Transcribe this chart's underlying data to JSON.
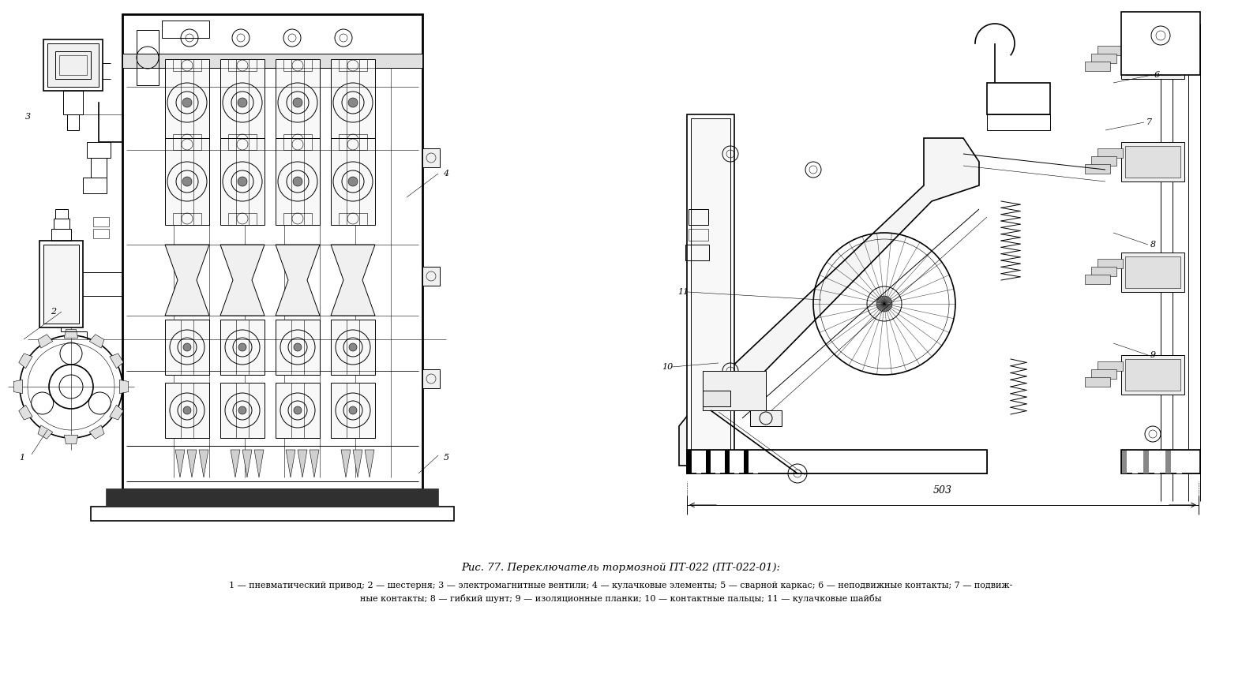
{
  "title": "Рис. 77. Переключатель тормозной ПТ-022 (ПТ-022-01):",
  "caption_line2": "1 — пневматический привод; 2 — шестерня; 3 — электромагнитные вентили; 4 — кулачковые элементы; 5 — сварной каркас; 6 — неподвижные контакты; 7 — подвиж-",
  "caption_line3": "ные контакты; 8 — гибкий шунт; 9 — изоляционные планки; 10 — контактные пальцы; 11 — кулачковые шайбы",
  "bg_color": "#ffffff",
  "fig_width": 15.73,
  "fig_height": 8.63,
  "dpi": 100,
  "title_fontsize": 9.5,
  "caption_fontsize": 8.0
}
